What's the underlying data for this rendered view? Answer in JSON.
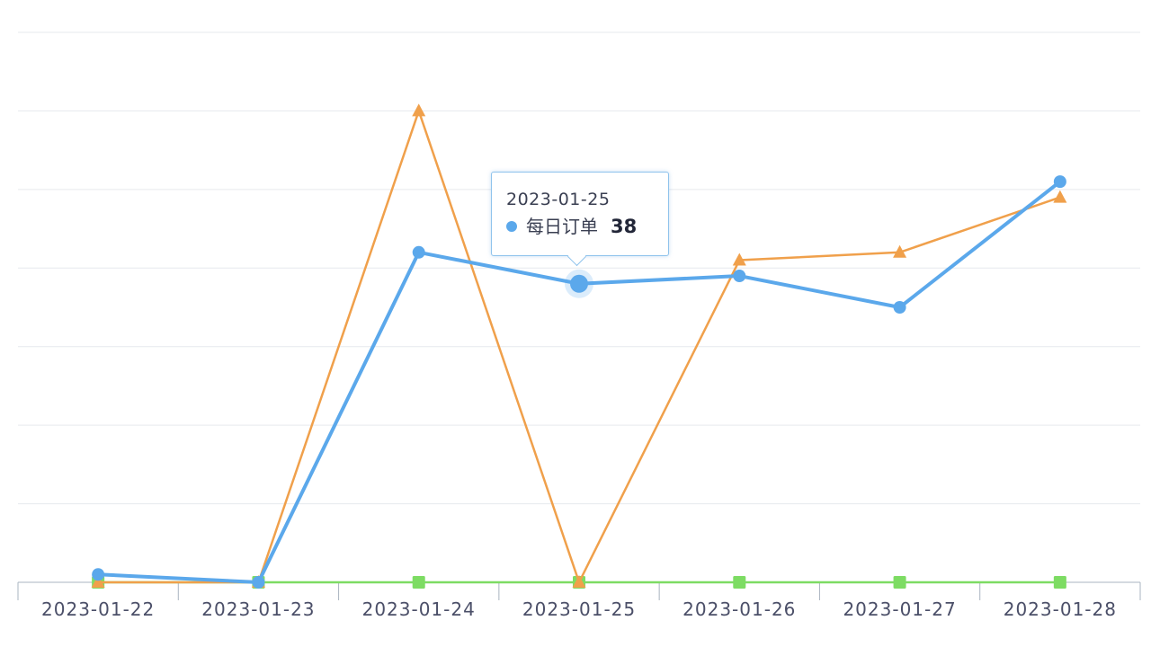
{
  "chart_data": {
    "type": "line",
    "categories": [
      "2023-01-22",
      "2023-01-23",
      "2023-01-24",
      "2023-01-25",
      "2023-01-26",
      "2023-01-27",
      "2023-01-28"
    ],
    "ylim": [
      0,
      70
    ],
    "grid": true,
    "series": [
      {
        "name": "每日订单",
        "color": "#5ba8eb",
        "marker": "circle",
        "values": [
          1,
          0,
          42,
          38,
          39,
          35,
          51
        ]
      },
      {
        "name": "",
        "color": "#f0a04b",
        "marker": "triangle",
        "values": [
          0,
          0,
          60,
          0,
          41,
          42,
          49
        ]
      },
      {
        "name": "",
        "color": "#7ddc63",
        "marker": "square",
        "values": [
          0,
          0,
          0,
          0,
          0,
          0,
          0
        ]
      }
    ]
  },
  "tooltip": {
    "title": "2023-01-25",
    "series_name": "每日订单",
    "value": "38",
    "color": "#5ba8eb",
    "category_index": 3,
    "series_index": 0
  }
}
